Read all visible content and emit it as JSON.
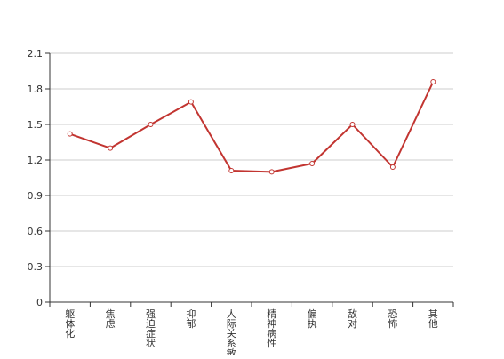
{
  "chart_data": {
    "type": "line",
    "categories": [
      "躯体化",
      "焦虑",
      "强迫症状",
      "抑郁",
      "人际关系敏感",
      "精神病性",
      "偏执",
      "敌对",
      "恐怖",
      "其他"
    ],
    "values": [
      1.42,
      1.3,
      1.5,
      1.69,
      1.11,
      1.1,
      1.17,
      1.5,
      1.14,
      1.86
    ],
    "y_ticks": [
      "0",
      "0.3",
      "0.6",
      "0.9",
      "1.2",
      "1.5",
      "1.8",
      "2.1"
    ],
    "ylim": [
      0,
      2.1
    ],
    "grid": true,
    "title": "",
    "xlabel": "",
    "ylabel": "",
    "colors": {
      "line": "#c23531",
      "grid": "#cccccc",
      "axis": "#333333",
      "text": "#333333",
      "point_fill": "#ffffff"
    }
  }
}
